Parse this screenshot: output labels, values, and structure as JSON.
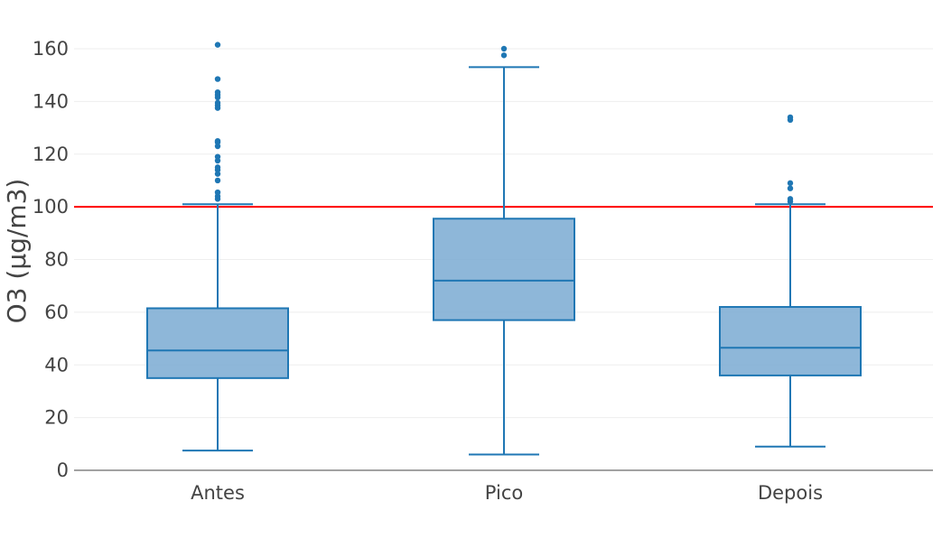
{
  "chart_data": {
    "type": "box",
    "title": "",
    "xlabel": "",
    "ylabel": "O3 (µg/m3)",
    "ylim": [
      0,
      165
    ],
    "yticks": [
      0,
      20,
      40,
      60,
      80,
      100,
      120,
      140,
      160
    ],
    "grid": true,
    "legend": "none",
    "categories": [
      "Antes",
      "Pico",
      "Depois"
    ],
    "boxes": [
      {
        "category": "Antes",
        "min": 7.5,
        "q1": 35,
        "median": 45.5,
        "q3": 61.5,
        "max": 101,
        "outliers": [
          103,
          104,
          105.5,
          110,
          112.5,
          114,
          115,
          117.5,
          119,
          123,
          124.5,
          125,
          137.5,
          138.5,
          139.5,
          141.5,
          142.5,
          143.5,
          148.5,
          161.5
        ]
      },
      {
        "category": "Pico",
        "min": 6,
        "q1": 57,
        "median": 72,
        "q3": 95.5,
        "max": 153,
        "outliers": [
          157.5,
          160
        ]
      },
      {
        "category": "Depois",
        "min": 9,
        "q1": 36,
        "median": 46.5,
        "q3": 62,
        "max": 101,
        "outliers": [
          102,
          103,
          107,
          109,
          133,
          134
        ]
      }
    ],
    "reference_line": {
      "y": 100,
      "color": "#ff0000"
    },
    "colors": {
      "box_fill": "#7aaad2",
      "box_line": "#1f77b4",
      "grid": "#eeeeee",
      "axis_line": "#444444"
    }
  }
}
